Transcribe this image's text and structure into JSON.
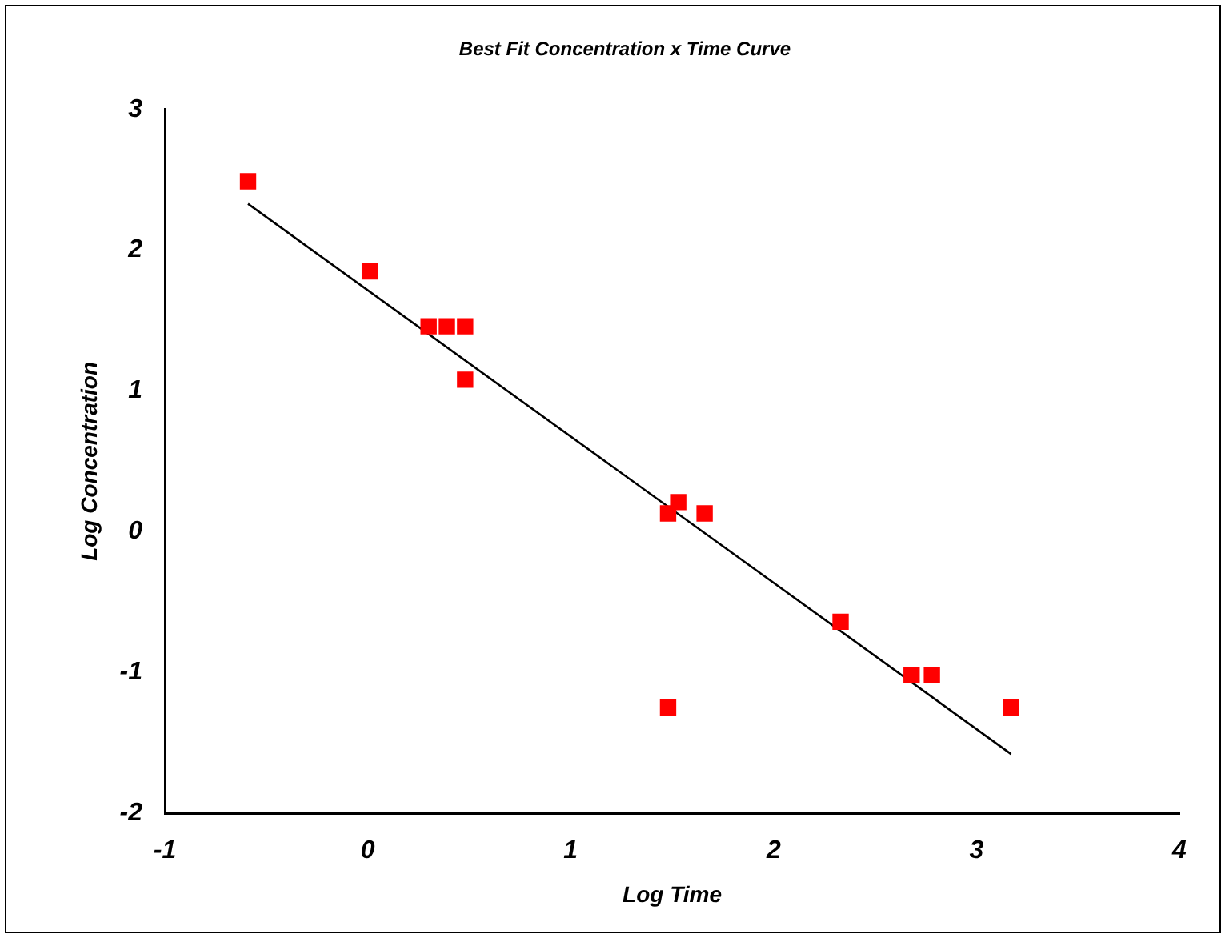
{
  "chart_data": {
    "type": "scatter",
    "title": "Best Fit Concentration x Time Curve",
    "xlabel": "Log Time",
    "ylabel": "Log Concentration",
    "xlim": [
      -1,
      4
    ],
    "xticks": [
      -1,
      0,
      1,
      2,
      3,
      4
    ],
    "ylim": [
      -2,
      3
    ],
    "yticks": [
      -2,
      -1,
      0,
      1,
      2,
      3
    ],
    "grid": false,
    "legend": false,
    "marker": "square",
    "series": [
      {
        "color": "#ff0000",
        "x": [
          -0.59,
          0.01,
          0.3,
          0.39,
          0.48,
          0.48,
          1.48,
          1.53,
          1.66,
          2.33,
          1.48,
          2.68,
          2.78,
          3.17
        ],
        "values": [
          2.49,
          1.85,
          1.46,
          1.46,
          1.46,
          1.08,
          0.13,
          0.21,
          0.13,
          -0.64,
          -1.25,
          -1.02,
          -1.02,
          -1.25
        ]
      },
      {
        "type": "line",
        "color": "#000000",
        "marker": "none",
        "x": [
          -0.59,
          3.17
        ],
        "values": [
          2.33,
          -1.58
        ]
      }
    ]
  }
}
